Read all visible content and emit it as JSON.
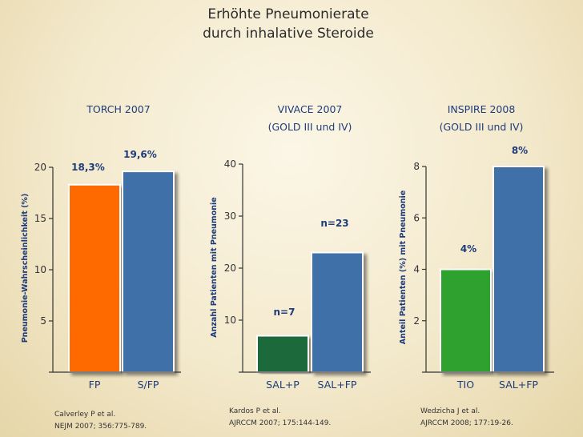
{
  "title": {
    "line1": "Erhöhte Pneumonierate",
    "line2": "durch inhalative Steroide"
  },
  "colors": {
    "orange": "#ff6a00",
    "blue": "#3f6fa8",
    "darkgreen": "#1f6b3a",
    "green": "#2ea12e",
    "label": "#1f3c7a"
  },
  "chart_data": [
    {
      "type": "bar",
      "title": [
        "TORCH 2007"
      ],
      "ylabel": "Pneumonie-Wahrscheinlichkeit (%)",
      "categories": [
        "FP",
        "S/FP"
      ],
      "values": [
        18.3,
        19.6
      ],
      "data_labels": [
        "18,3%",
        "19,6%"
      ],
      "bar_colors": [
        "#ff6a00",
        "#3f6fa8"
      ],
      "yticks": [
        5,
        10,
        15,
        20
      ],
      "ylim": [
        0,
        20
      ],
      "reference": [
        "Calverley P et al.",
        "NEJM 2007; 356:775-789."
      ]
    },
    {
      "type": "bar",
      "title": [
        "VIVACE 2007",
        "(GOLD III und IV)"
      ],
      "ylabel": "Anzahl Patienten mit Pneumonie",
      "categories": [
        "SAL+P",
        "SAL+FP"
      ],
      "values": [
        7,
        23
      ],
      "data_labels": [
        "n=7",
        "n=23"
      ],
      "bar_colors": [
        "#1f6b3a",
        "#3f6fa8"
      ],
      "yticks": [
        10,
        20,
        30,
        40
      ],
      "ylim": [
        0,
        40
      ],
      "reference": [
        "Kardos P et al.",
        "AJRCCM 2007; 175:144-149."
      ]
    },
    {
      "type": "bar",
      "title": [
        "INSPIRE 2008",
        "(GOLD III und IV)"
      ],
      "ylabel": "Anteil Patienten (%)  mit Pneumonie",
      "categories": [
        "TIO",
        "SAL+FP"
      ],
      "values": [
        4,
        8
      ],
      "data_labels": [
        "4%",
        "8%"
      ],
      "bar_colors": [
        "#2ea12e",
        "#3f6fa8"
      ],
      "yticks": [
        2,
        4,
        6,
        8
      ],
      "ylim": [
        0,
        8
      ],
      "reference": [
        "Wedzicha J et al.",
        "AJRCCM 2008; 177:19-26."
      ]
    }
  ]
}
